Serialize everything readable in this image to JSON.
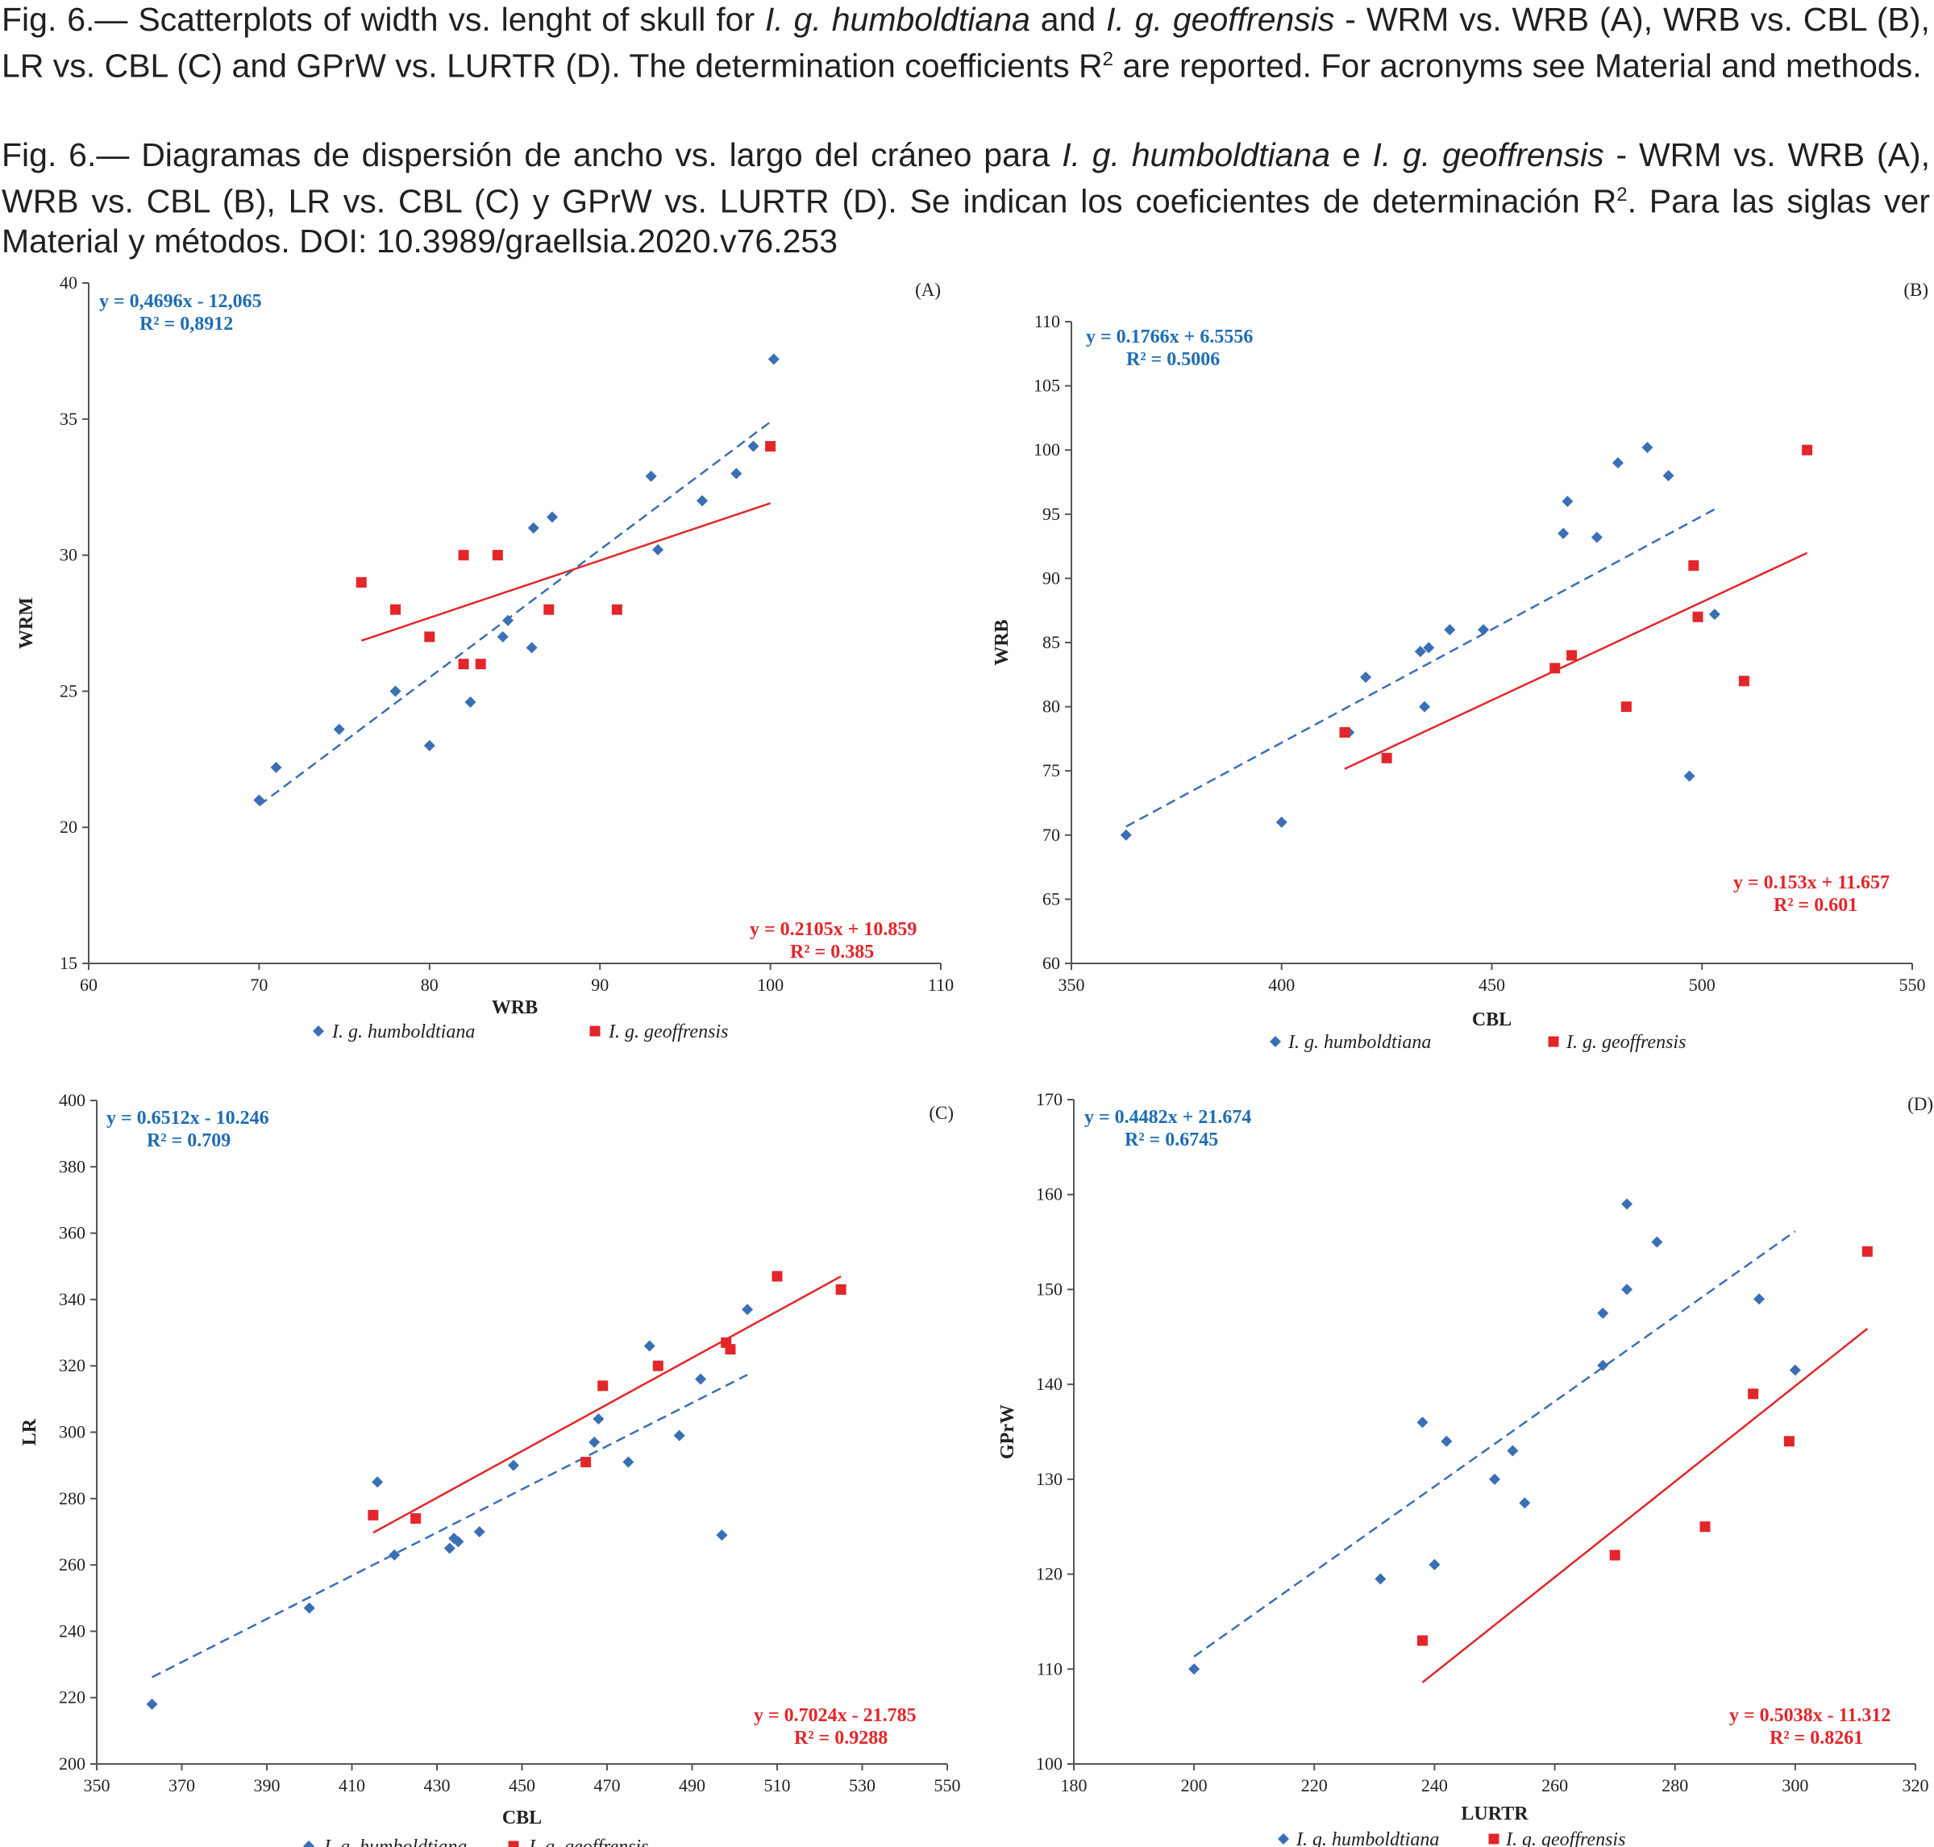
{
  "caption": {
    "en": {
      "pre": "Fig. 6.— Scatterplots of width vs. lenght of skull for ",
      "sp1": "I. g. humboldtiana",
      "mid": " and ",
      "sp2": "I. g. geoffrensis",
      "post": " - WRM vs. WRB (A), WRB vs. CBL (B), LR vs. CBL (C) and GPrW vs. LURTR (D). The determination coefficients R",
      "sup": "2",
      "end": " are reported. For acronyms see Material and methods."
    },
    "es": {
      "pre": "Fig. 6.— Diagramas de dispersión de ancho vs. largo del cráneo para ",
      "sp1": "I. g. humboldtiana",
      "mid": " e ",
      "sp2": "I. g. geoffrensis",
      "post": " - WRM vs. WRB (A), WRB vs. CBL (B), LR vs. CBL (C) y GPrW vs. LURTR (D). Se indican los coeficientes de determinación R",
      "sup": "2",
      "end": ". Para las siglas ver Material y métodos. DOI: 10.3989/graellsia.2020.v76.253"
    }
  },
  "colors": {
    "humboldtiana": "#3a6fb5",
    "geoffrensis": "#e3262a",
    "eq_blue": "#1f6db3"
  },
  "chart_data": [
    {
      "type": "scatter",
      "panel": "(A)",
      "xlabel": "WRB",
      "ylabel": "WRM",
      "xlim": [
        60,
        110
      ],
      "xticks": [
        60,
        70,
        80,
        90,
        100,
        110
      ],
      "ylim": [
        15,
        40
      ],
      "yticks": [
        15,
        20,
        25,
        30,
        35,
        40
      ],
      "series": [
        {
          "name": "I. g. humboldtiana",
          "marker": "diamond",
          "points": [
            [
              70,
              21
            ],
            [
              71,
              22.2
            ],
            [
              74.7,
              23.6
            ],
            [
              78,
              25
            ],
            [
              80,
              23
            ],
            [
              82.4,
              24.6
            ],
            [
              84.3,
              27
            ],
            [
              84.6,
              27.6
            ],
            [
              86,
              26.6
            ],
            [
              86.1,
              31
            ],
            [
              87.2,
              31.4
            ],
            [
              93,
              32.9
            ],
            [
              93.4,
              30.2
            ],
            [
              96,
              32
            ],
            [
              98,
              33
            ],
            [
              99,
              34
            ],
            [
              100.2,
              37.2
            ]
          ],
          "trend": {
            "style": "dashed",
            "x": [
              70,
              100.2
            ]
          },
          "equation": "y = 0,4696x - 12,065",
          "r2": "R² = 0,8912"
        },
        {
          "name": "I. g. geoffrensis",
          "marker": "square",
          "points": [
            [
              76,
              29
            ],
            [
              78,
              28
            ],
            [
              80,
              27
            ],
            [
              82,
              30
            ],
            [
              82,
              26
            ],
            [
              83,
              26
            ],
            [
              84,
              30
            ],
            [
              87,
              28
            ],
            [
              91,
              28
            ],
            [
              100,
              34
            ]
          ],
          "trend": {
            "style": "solid",
            "x": [
              76,
              100
            ]
          },
          "equation": "y = 0.2105x + 10.859",
          "r2": "R² = 0.385"
        }
      ]
    },
    {
      "type": "scatter",
      "panel": "(B)",
      "xlabel": "CBL",
      "ylabel": "WRB",
      "xlim": [
        350,
        550
      ],
      "xticks": [
        350,
        400,
        450,
        500,
        550
      ],
      "ylim": [
        60,
        110
      ],
      "yticks": [
        60,
        65,
        70,
        75,
        80,
        85,
        90,
        95,
        100,
        105,
        110
      ],
      "series": [
        {
          "name": "I. g. humboldtiana",
          "marker": "diamond",
          "points": [
            [
              363,
              70
            ],
            [
              400,
              71
            ],
            [
              416,
              78
            ],
            [
              420,
              82.3
            ],
            [
              433,
              84.3
            ],
            [
              435,
              84.6
            ],
            [
              434,
              80
            ],
            [
              440,
              86
            ],
            [
              448,
              86
            ],
            [
              467,
              93.5
            ],
            [
              468,
              96
            ],
            [
              475,
              93.2
            ],
            [
              480,
              99
            ],
            [
              487,
              100.2
            ],
            [
              492,
              98
            ],
            [
              497,
              74.6
            ],
            [
              503,
              87.2
            ]
          ],
          "trend": {
            "style": "dashed",
            "x": [
              363,
              503
            ]
          },
          "equation": "y = 0.1766x + 6.5556",
          "r2": "R² = 0.5006"
        },
        {
          "name": "I. g. geoffrensis",
          "marker": "square",
          "points": [
            [
              415,
              78
            ],
            [
              425,
              76
            ],
            [
              465,
              83
            ],
            [
              469,
              84
            ],
            [
              482,
              80
            ],
            [
              498,
              91
            ],
            [
              499,
              87
            ],
            [
              510,
              82
            ],
            [
              525,
              100
            ]
          ],
          "trend": {
            "style": "solid",
            "x": [
              415,
              525
            ]
          },
          "equation": "y = 0.153x + 11.657",
          "r2": "R² = 0.601"
        }
      ]
    },
    {
      "type": "scatter",
      "panel": "(C)",
      "xlabel": "CBL",
      "ylabel": "LR",
      "xlim": [
        350,
        550
      ],
      "xticks": [
        350,
        370,
        390,
        410,
        430,
        450,
        470,
        490,
        510,
        530,
        550
      ],
      "ylim": [
        200,
        400
      ],
      "yticks": [
        200,
        220,
        240,
        260,
        280,
        300,
        320,
        340,
        360,
        380,
        400
      ],
      "series": [
        {
          "name": "I. g. humboldtiana",
          "marker": "diamond",
          "points": [
            [
              363,
              218
            ],
            [
              400,
              247
            ],
            [
              416,
              285
            ],
            [
              420,
              263
            ],
            [
              433,
              265
            ],
            [
              434,
              268
            ],
            [
              435,
              267
            ],
            [
              440,
              270
            ],
            [
              448,
              290
            ],
            [
              467,
              297
            ],
            [
              468,
              304
            ],
            [
              475,
              291
            ],
            [
              480,
              326
            ],
            [
              487,
              299
            ],
            [
              492,
              316
            ],
            [
              497,
              269
            ],
            [
              503,
              337
            ]
          ],
          "trend": {
            "style": "dashed",
            "x": [
              363,
              503
            ]
          },
          "equation": "y = 0.6512x - 10.246",
          "r2": "R² = 0.709"
        },
        {
          "name": "I. g. geoffrensis",
          "marker": "square",
          "points": [
            [
              415,
              275
            ],
            [
              425,
              274
            ],
            [
              465,
              291
            ],
            [
              469,
              314
            ],
            [
              482,
              320
            ],
            [
              498,
              327
            ],
            [
              499,
              325
            ],
            [
              510,
              347
            ],
            [
              525,
              343
            ]
          ],
          "trend": {
            "style": "solid",
            "x": [
              415,
              525
            ]
          },
          "equation": "y = 0.7024x - 21.785",
          "r2": "R² = 0.9288"
        }
      ]
    },
    {
      "type": "scatter",
      "panel": "(D)",
      "xlabel": "LURTR",
      "ylabel": "GPrW",
      "xlim": [
        180,
        320
      ],
      "xticks": [
        180,
        200,
        220,
        240,
        260,
        280,
        300,
        320
      ],
      "ylim": [
        100,
        170
      ],
      "yticks": [
        100,
        110,
        120,
        130,
        140,
        150,
        160,
        170
      ],
      "series": [
        {
          "name": "I. g. humboldtiana",
          "marker": "diamond",
          "points": [
            [
              200,
              110
            ],
            [
              231,
              119.5
            ],
            [
              238,
              136
            ],
            [
              240,
              121
            ],
            [
              242,
              134
            ],
            [
              250,
              130
            ],
            [
              253,
              133
            ],
            [
              255,
              127.5
            ],
            [
              268,
              142
            ],
            [
              268,
              147.5
            ],
            [
              272,
              150
            ],
            [
              272,
              159
            ],
            [
              277,
              155
            ],
            [
              294,
              149
            ],
            [
              300,
              141.5
            ]
          ],
          "trend": {
            "style": "dashed",
            "x": [
              200,
              300
            ]
          },
          "equation": "y = 0.4482x + 21.674",
          "r2": "R² = 0.6745"
        },
        {
          "name": "I. g. geoffrensis",
          "marker": "square",
          "points": [
            [
              238,
              113
            ],
            [
              270,
              122
            ],
            [
              285,
              125
            ],
            [
              293,
              139
            ],
            [
              299,
              134
            ],
            [
              312,
              154
            ]
          ],
          "trend": {
            "style": "solid",
            "x": [
              238,
              312
            ]
          },
          "equation": "y = 0.5038x - 11.312",
          "r2": "R² = 0.8261"
        }
      ]
    }
  ]
}
